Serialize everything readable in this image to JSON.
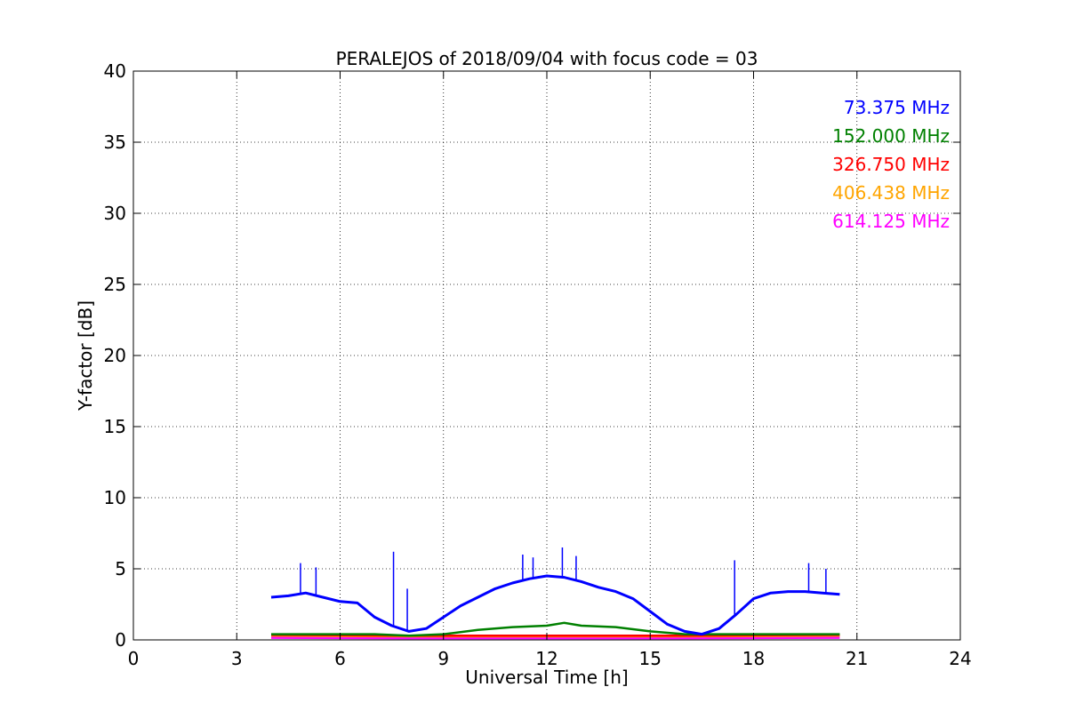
{
  "chart_data": {
    "type": "line",
    "title": "PERALEJOS of 2018/09/04 with focus code = 03",
    "xlabel": "Universal Time [h]",
    "ylabel": "Y-factor [dB]",
    "xlim": [
      0,
      24
    ],
    "ylim": [
      0,
      40
    ],
    "x_ticks": [
      0,
      3,
      6,
      9,
      12,
      15,
      18,
      21,
      24
    ],
    "y_ticks": [
      0,
      5,
      10,
      15,
      20,
      25,
      30,
      35,
      40
    ],
    "grid": true,
    "legend_placement": "top-right",
    "series": [
      {
        "name": "73.375 MHz",
        "color": "#0000ff",
        "x": [
          4.0,
          4.5,
          5.0,
          5.5,
          6.0,
          6.5,
          7.0,
          7.5,
          8.0,
          8.5,
          9.0,
          9.5,
          10.0,
          10.5,
          11.0,
          11.5,
          12.0,
          12.5,
          13.0,
          13.5,
          14.0,
          14.5,
          15.0,
          15.5,
          16.0,
          16.5,
          17.0,
          17.5,
          18.0,
          18.5,
          19.0,
          19.5,
          20.0,
          20.5
        ],
        "y": [
          3.0,
          3.1,
          3.3,
          3.0,
          2.7,
          2.6,
          1.6,
          1.0,
          0.6,
          0.8,
          1.6,
          2.4,
          3.0,
          3.6,
          4.0,
          4.3,
          4.5,
          4.4,
          4.1,
          3.7,
          3.4,
          2.9,
          2.0,
          1.1,
          0.6,
          0.4,
          0.8,
          1.8,
          2.9,
          3.3,
          3.4,
          3.4,
          3.3,
          3.2
        ],
        "spikes": [
          {
            "x": 4.85,
            "y": 5.4
          },
          {
            "x": 5.3,
            "y": 5.1
          },
          {
            "x": 7.55,
            "y": 6.2
          },
          {
            "x": 7.95,
            "y": 3.6
          },
          {
            "x": 11.3,
            "y": 6.0
          },
          {
            "x": 11.6,
            "y": 5.8
          },
          {
            "x": 12.45,
            "y": 6.5
          },
          {
            "x": 12.85,
            "y": 5.9
          },
          {
            "x": 17.45,
            "y": 5.6
          },
          {
            "x": 19.6,
            "y": 5.4
          },
          {
            "x": 20.1,
            "y": 5.0
          }
        ]
      },
      {
        "name": "152.000 MHz",
        "color": "#008000",
        "x": [
          4.0,
          5.0,
          6.0,
          7.0,
          8.0,
          9.0,
          10.0,
          11.0,
          12.0,
          12.5,
          13.0,
          14.0,
          15.0,
          16.0,
          17.0,
          18.0,
          19.0,
          20.0,
          20.5
        ],
        "y": [
          0.4,
          0.4,
          0.4,
          0.4,
          0.3,
          0.4,
          0.7,
          0.9,
          1.0,
          1.2,
          1.0,
          0.9,
          0.6,
          0.4,
          0.4,
          0.4,
          0.4,
          0.4,
          0.4
        ]
      },
      {
        "name": "326.750 MHz",
        "color": "#ff0000",
        "x": [
          4.0,
          8.0,
          12.0,
          16.0,
          20.5
        ],
        "y": [
          0.35,
          0.3,
          0.3,
          0.3,
          0.35
        ]
      },
      {
        "name": "406.438 MHz",
        "color": "#ffa500",
        "x": [
          4.0,
          8.0,
          12.0,
          16.0,
          20.5
        ],
        "y": [
          0.3,
          0.25,
          0.25,
          0.25,
          0.3
        ]
      },
      {
        "name": "614.125 MHz",
        "color": "#ff00ff",
        "x": [
          4.0,
          8.0,
          12.0,
          16.0,
          20.5
        ],
        "y": [
          0.15,
          0.12,
          0.12,
          0.12,
          0.15
        ]
      }
    ]
  }
}
